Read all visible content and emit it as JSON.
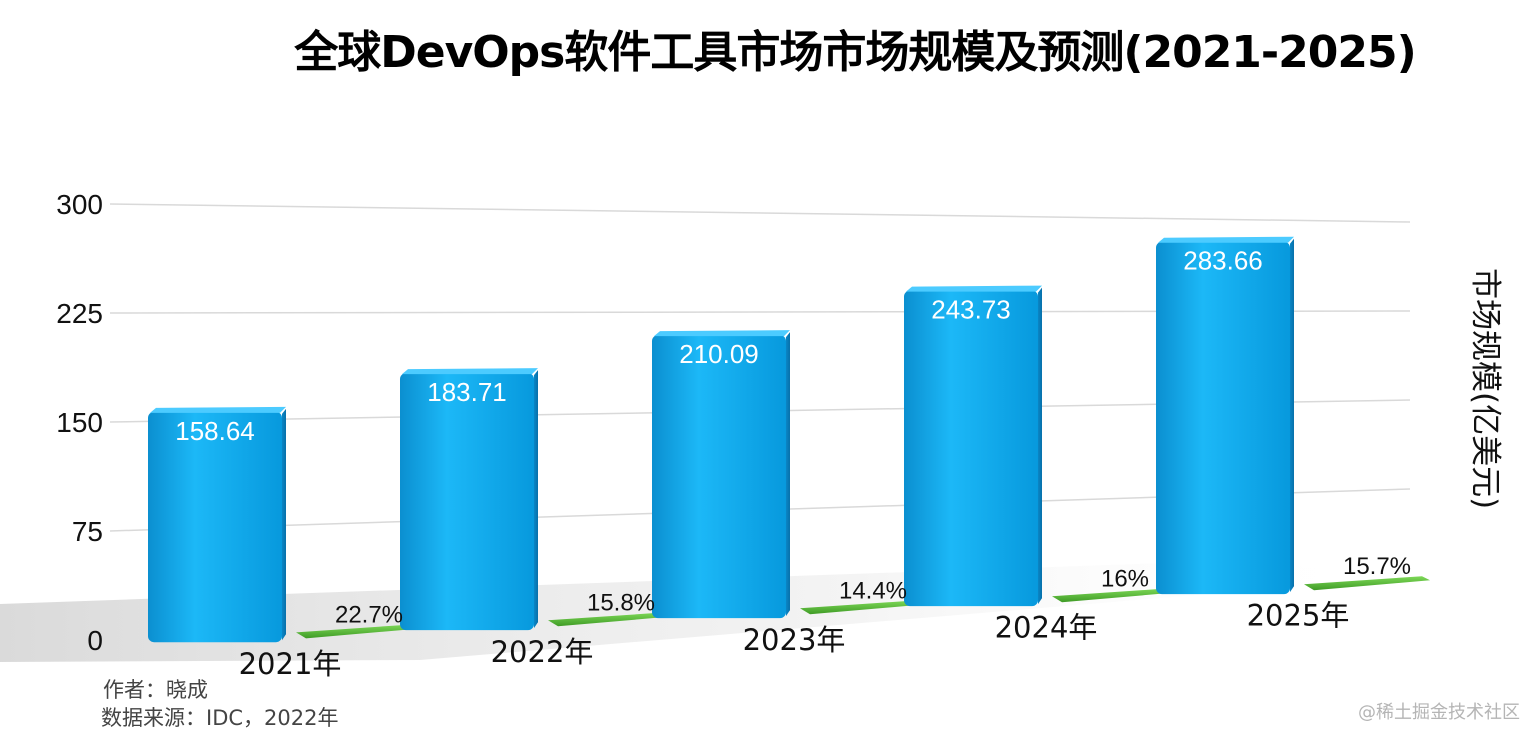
{
  "chart_data": {
    "type": "bar",
    "title": "全球DevOps软件工具市场市场规模及预测(2021-2025)",
    "categories": [
      "2021年",
      "2022年",
      "2023年",
      "2024年",
      "2025年"
    ],
    "series": [
      {
        "name": "市场规模(亿美元)",
        "values": [
          158.64,
          183.71,
          210.09,
          243.73,
          283.66
        ],
        "data_labels": [
          "158.64",
          "183.71",
          "210.09",
          "243.73",
          "283.66"
        ],
        "color": "#0EA9F0"
      },
      {
        "values": [
          22.7,
          15.8,
          14.4,
          16,
          15.7
        ],
        "data_labels": [
          "22.7%",
          "15.8%",
          "14.4%",
          "16%",
          "15.7%"
        ],
        "color": "#5BB83A"
      }
    ],
    "yticks": [
      "0",
      "75",
      "150",
      "225",
      "300"
    ],
    "ylim": [
      0,
      300
    ],
    "ylabel": "市场规模(亿美元)",
    "grid": true
  },
  "footer": {
    "author": "作者：晓成",
    "source": "数据来源：IDC，2022年"
  },
  "watermark": "@稀土掘金技术社区",
  "colors": {
    "bar": "#0EA9F0",
    "growth": "#5BB83A",
    "grid": "#D9D9D9"
  }
}
